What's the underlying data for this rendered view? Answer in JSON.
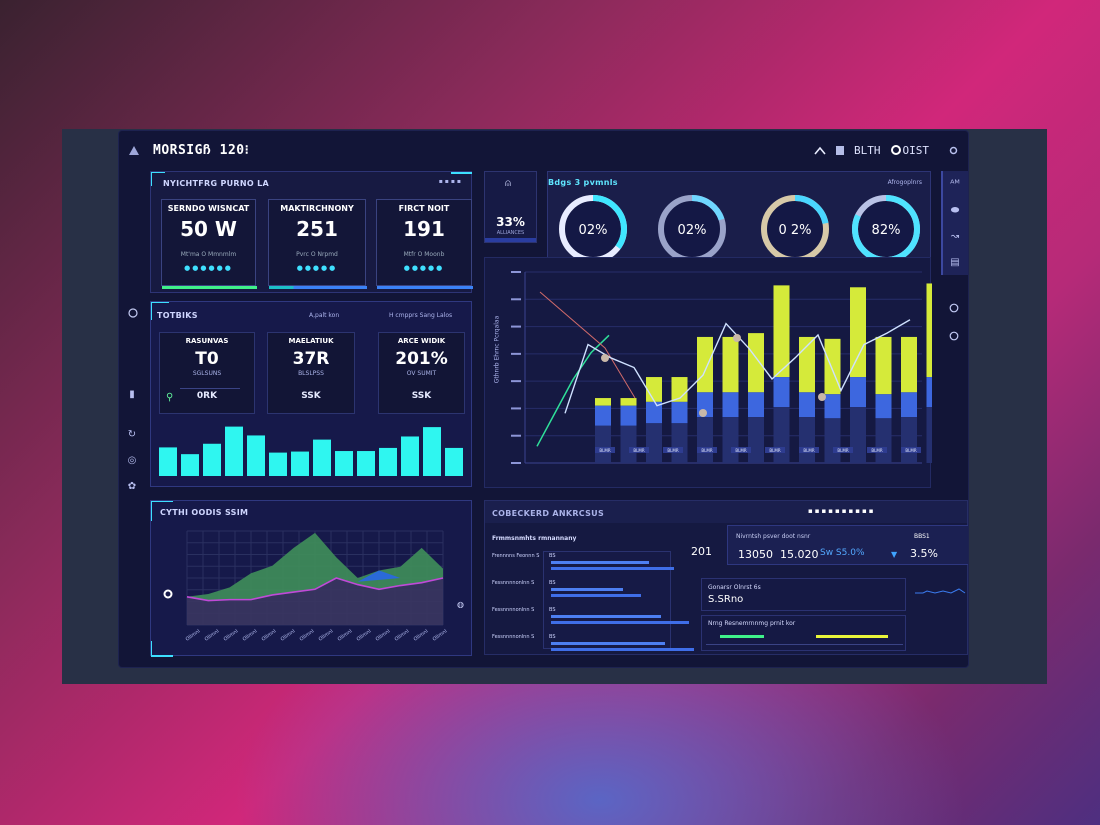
{
  "app": {
    "title": "MORSIGჩ 120⁝",
    "header_right": "BLTH",
    "header_right2": "OIST"
  },
  "kpi_panel": {
    "title": "NYICHTFRG PURNO LA",
    "cards": [
      {
        "label": "SERNDO WISNCAT",
        "value": "50 W",
        "sub": "Mt'ma O Mmnmlm"
      },
      {
        "label": "MAKTIRCHNONY",
        "value": "251",
        "sub": "Pvrc O Nrpmd"
      },
      {
        "label": "FIRCT NOIT",
        "value": "191",
        "sub": "Mtfr O Moonb"
      }
    ]
  },
  "metrics_panel": {
    "title": "TOTBIKS",
    "subtitle": "A,palt kon",
    "subtitle2": "H cmpprs Sang Lalos",
    "cards": [
      {
        "label": "RASUNVAS",
        "value": "T0",
        "sub": "SGLSUNS",
        "foot": "0RK"
      },
      {
        "label": "MAELATIUK",
        "value": "37R",
        "sub": "BLSLPSS",
        "foot": "SSK"
      },
      {
        "label": "ARCE WIDIK",
        "value": "201%",
        "sub": "OV SUMIT",
        "foot": "SSK"
      }
    ],
    "bars": [
      0.55,
      0.42,
      0.62,
      0.95,
      0.78,
      0.45,
      0.47,
      0.7,
      0.48,
      0.48,
      0.54,
      0.76,
      0.94,
      0.54
    ]
  },
  "center_badge": {
    "value": "33%",
    "sub": "ALLIANCES"
  },
  "donut_panel": {
    "title": "Bdgs 3 pvmnls",
    "title_right": "Afrogoplnrs",
    "donuts": [
      {
        "label": "02%",
        "fraction": 0.35,
        "color": "#3fe6ff",
        "track": "#e8ecff"
      },
      {
        "label": "02%",
        "fraction": 0.2,
        "color": "#6fd7ff",
        "track": "#9aa3c9"
      },
      {
        "label": "0 2%",
        "fraction": 0.22,
        "color": "#4ad6ff",
        "track": "#d7c9a8"
      },
      {
        "label": "82%",
        "fraction": 0.82,
        "color": "#4fe3ff",
        "track": "#b9c2e6"
      }
    ]
  },
  "combo_chart": {
    "ylabel": "Gthnrb Ehrnc Pcrqalaa",
    "yticks": [
      "",
      "",
      "",
      "",
      "",
      "",
      "",
      ""
    ],
    "bars_top": [
      0.34,
      0.34,
      0.45,
      0.45,
      0.66,
      0.66,
      0.68,
      0.93,
      0.66,
      0.65,
      0.92,
      0.66,
      0.66,
      0.94
    ],
    "bars_mid": [
      0.3,
      0.3,
      0.32,
      0.32,
      0.37,
      0.37,
      0.37,
      0.45,
      0.37,
      0.36,
      0.45,
      0.36,
      0.37,
      0.45
    ],
    "line": [
      0.26,
      0.62,
      0.55,
      0.5,
      0.3,
      0.34,
      0.46,
      0.73,
      0.6,
      0.44,
      0.55,
      0.67,
      0.38,
      0.62,
      0.68,
      0.75
    ],
    "trend": [
      0.05,
      0.3,
      0.55,
      0.75,
      0.88
    ],
    "bar_labels": [
      "BLMR",
      "BLMR",
      "BLMR",
      "BLMR",
      "BLMR",
      "BLMR",
      "BLMR",
      "BLMR",
      "BLMR",
      "BLMR",
      "BLMR"
    ]
  },
  "area_panel": {
    "title": "CYTHI OODIS SSIM",
    "top": [
      0.3,
      0.33,
      0.4,
      0.55,
      0.63,
      0.82,
      0.98,
      0.72,
      0.5,
      0.58,
      0.62,
      0.82,
      0.6
    ],
    "bottom": [
      0.3,
      0.26,
      0.27,
      0.27,
      0.32,
      0.35,
      0.38,
      0.5,
      0.43,
      0.38,
      0.42,
      0.45,
      0.5
    ],
    "x_labels": [
      "Ollmnl",
      "Ollmnl",
      "Ollmnl",
      "Ollmnl",
      "Ollmnl",
      "Ollmnl",
      "Ollmnl",
      "Ollmnl",
      "Ollmnl",
      "Ollmnl",
      "Ollmnl",
      "Ollmnl",
      "Ollmnl",
      "Ollmnl"
    ]
  },
  "table_panel": {
    "title": "COBECKERD ANKRCSUS",
    "subtitle": "Frmmsnmhts rmnannany",
    "count": "201",
    "rows": [
      {
        "label": "Frennnns Feonnn S",
        "prefix": "BS",
        "fill": 0.82
      },
      {
        "label": "Fessnnnnonlnn S",
        "prefix": "BS",
        "fill": 0.6
      },
      {
        "label": "Fessnnnnonlnn S",
        "prefix": "BS",
        "fill": 0.92
      },
      {
        "label": "Fessnnnnonlnn S",
        "prefix": "BS",
        "fill": 0.95
      }
    ]
  },
  "summary_panel": {
    "title": "Nivrntsh psver doot nsnr",
    "values": [
      "13050",
      "15.020",
      "Sw S5.0%"
    ],
    "right_title": "BBS1",
    "right_value": "3.5%",
    "mini_title": "Gonarsr Olnrst 6s",
    "mini_value": "S.SRno",
    "bottom_title": "Nrng Resnemrnnmg prnit kor"
  }
}
